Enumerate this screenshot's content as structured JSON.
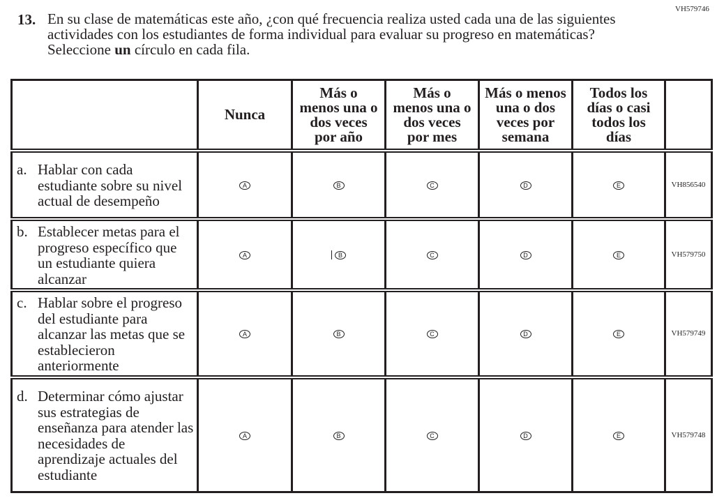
{
  "item_id": "VH579746",
  "question": {
    "number": "13.",
    "text_before": "En su clase de matemáticas este año, ¿con qué frecuencia realiza usted cada una de las siguientes actividades con los estudiantes de forma individual para evaluar su progreso en matemáticas? Seleccione ",
    "text_bold": "un",
    "text_after": " círculo en cada fila."
  },
  "columns": [
    "Nunca",
    "Más o menos una o dos veces por año",
    "Más o menos una o dos veces por mes",
    "Más o menos una o dos veces por semana",
    "Todos los días o casi todos los días"
  ],
  "options": [
    "A",
    "B",
    "C",
    "D",
    "E"
  ],
  "rows": [
    {
      "letter": "a.",
      "text": "Hablar con cada estudiante sobre su nivel actual de desempeño",
      "code": "VH856540"
    },
    {
      "letter": "b.",
      "text": "Establecer metas para el progreso específico que un estudiante quiera alcanzar",
      "code": "VH579750"
    },
    {
      "letter": "c.",
      "text": "Hablar sobre el progreso del estudiante para alcanzar las metas que se establecieron anteriormente",
      "code": "VH579749"
    },
    {
      "letter": "d.",
      "text": "Determinar cómo ajustar sus estrategias de enseñanza para atender las necesidades de aprendizaje actuales del estudiante",
      "code": "VH579748"
    }
  ]
}
